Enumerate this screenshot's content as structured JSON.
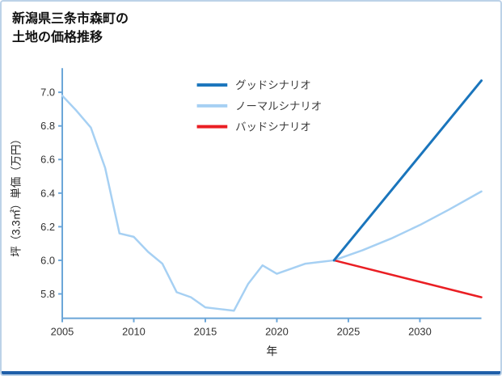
{
  "page": {
    "border_color": "#bcd2e8",
    "footer_bar_color": "#1f5fa9",
    "background_color": "#ffffff"
  },
  "title": {
    "line1": "新潟県三条市森町の",
    "line2": "土地の価格推移"
  },
  "chart_data": {
    "type": "line",
    "title": "新潟県三条市森町の土地の価格推移",
    "xlabel": "年",
    "ylabel": "坪（3.3㎡）単価（万円）",
    "xlim": [
      2005,
      2034.3
    ],
    "ylim": [
      5.655,
      7.12
    ],
    "xticks": [
      2005,
      2010,
      2015,
      2020,
      2025,
      2030
    ],
    "yticks": [
      5.8,
      6.0,
      6.2,
      6.4,
      6.6,
      6.8,
      7.0
    ],
    "grid": false,
    "legend_position": "upper-center-inside",
    "axis_color": "#6aa5d8",
    "tick_label_color": "#333333",
    "axis_label_color": "#222222",
    "legend_text_color": "#3c3c3c",
    "series": [
      {
        "name": "ノーマルシナリオ",
        "color": "#a6d0f3",
        "width": 2.5,
        "x": [
          2005,
          2006,
          2007,
          2008,
          2009,
          2010,
          2011,
          2012,
          2013,
          2014,
          2015,
          2016,
          2017,
          2018,
          2019,
          2020,
          2021,
          2022,
          2023,
          2024,
          2026,
          2028,
          2030,
          2032,
          2034.3
        ],
        "values": [
          6.98,
          6.89,
          6.79,
          6.55,
          6.16,
          6.14,
          6.05,
          5.98,
          5.81,
          5.78,
          5.72,
          5.71,
          5.7,
          5.86,
          5.97,
          5.92,
          5.95,
          5.98,
          5.99,
          6.0,
          6.06,
          6.13,
          6.21,
          6.3,
          6.41
        ]
      },
      {
        "name": "バッドシナリオ",
        "color": "#ea1e23",
        "width": 2.5,
        "x": [
          2024,
          2034.3
        ],
        "values": [
          6.0,
          5.78
        ]
      },
      {
        "name": "グッドシナリオ",
        "color": "#1a75bc",
        "width": 3,
        "x": [
          2024,
          2034.3
        ],
        "values": [
          6.0,
          7.07
        ]
      }
    ],
    "legend": [
      {
        "label": "グッドシナリオ",
        "color": "#1a75bc"
      },
      {
        "label": "ノーマルシナリオ",
        "color": "#a6d0f3"
      },
      {
        "label": "バッドシナリオ",
        "color": "#ea1e23"
      }
    ]
  }
}
